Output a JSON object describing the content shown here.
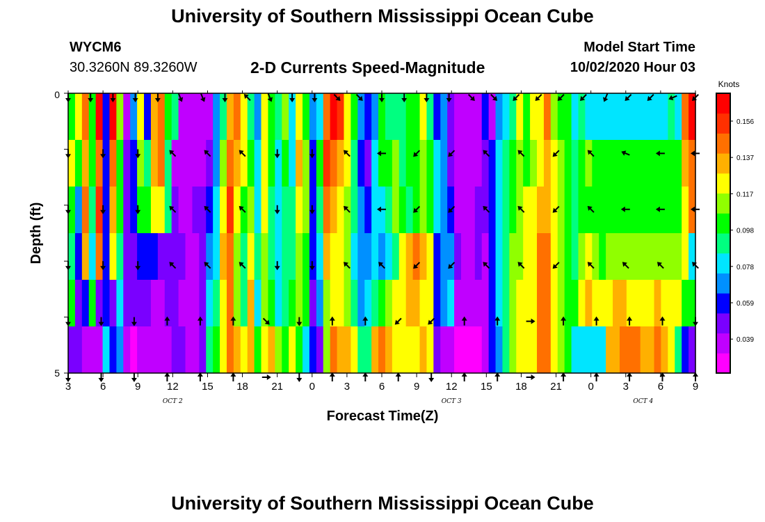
{
  "header": {
    "title": "University of Southern Mississippi Ocean Cube",
    "station_id": "WYCM6",
    "coordinates": "30.3260N 89.3260W",
    "chart_title": "2-D Currents Speed-Magnitude",
    "model_label": "Model Start Time",
    "model_time": "10/02/2020 Hour 03"
  },
  "footer": {
    "title": "University of Southern Mississippi Ocean Cube"
  },
  "chart_data": {
    "type": "heatmap",
    "xlabel": "Forecast Time(Z)",
    "ylabel": "Depth (ft)",
    "ylim": [
      0,
      5
    ],
    "y_tick_labels": [
      "0",
      "5"
    ],
    "x_tick_labels": [
      "3",
      "6",
      "9",
      "12",
      "15",
      "18",
      "21",
      "0",
      "3",
      "6",
      "9",
      "12",
      "15",
      "18",
      "21",
      "0",
      "3",
      "6",
      "9"
    ],
    "date_labels": [
      {
        "text": "OCT 2",
        "at_tick": 3
      },
      {
        "text": "OCT 3",
        "at_tick": 11
      },
      {
        "text": "OCT 4",
        "at_tick": 16.5
      }
    ],
    "colorbar": {
      "unit": "Knots",
      "tick_labels": [
        "0.156",
        "0.137",
        "0.117",
        "0.098",
        "0.078",
        "0.059",
        "0.039"
      ],
      "colors": [
        "#ff00ff",
        "#c000ff",
        "#7a00ff",
        "#0000ff",
        "#0090ff",
        "#00e5ff",
        "#00ff80",
        "#00ff00",
        "#90ff00",
        "#ffff00",
        "#ffb000",
        "#ff7000",
        "#ff3000",
        "#ff0000"
      ]
    },
    "layers": 5,
    "hours_per_column": 1,
    "speed_grid": [
      [
        0.1,
        0.12,
        0.14,
        0.1,
        0.16,
        0.06,
        0.16,
        0.11,
        0.04,
        0.07,
        0.12,
        0.06,
        0.13,
        0.14,
        0.1,
        0.09,
        0.04,
        0.04,
        0.04,
        0.04,
        0.04,
        0.07,
        0.09,
        0.13,
        0.14,
        0.12,
        0.09,
        0.07,
        0.12,
        0.1,
        0.09,
        0.11,
        0.08,
        0.12,
        0.1,
        0.07,
        0.08,
        0.14,
        0.16,
        0.15,
        0.12,
        0.1,
        0.07,
        0.06,
        0.07,
        0.1,
        0.09,
        0.09,
        0.09,
        0.1,
        0.1,
        0.12,
        0.09,
        0.06,
        0.07,
        0.05,
        0.04,
        0.04,
        0.04,
        0.04,
        0.06,
        0.04,
        0.07,
        0.08,
        0.09,
        0.12,
        0.1,
        0.12,
        0.12,
        0.14,
        0.11,
        0.1,
        0.1,
        0.08,
        0.09,
        0.08,
        0.08,
        0.08,
        0.08,
        0.08,
        0.08,
        0.08,
        0.08,
        0.08,
        0.08,
        0.08,
        0.08,
        0.09,
        0.08,
        0.14,
        0.16
      ],
      [
        0.12,
        0.1,
        0.13,
        0.1,
        0.14,
        0.06,
        0.14,
        0.1,
        0.05,
        0.06,
        0.11,
        0.09,
        0.13,
        0.14,
        0.09,
        0.04,
        0.04,
        0.04,
        0.04,
        0.04,
        0.05,
        0.07,
        0.11,
        0.14,
        0.13,
        0.12,
        0.1,
        0.08,
        0.12,
        0.1,
        0.08,
        0.1,
        0.08,
        0.13,
        0.11,
        0.06,
        0.1,
        0.15,
        0.14,
        0.13,
        0.12,
        0.09,
        0.06,
        0.05,
        0.08,
        0.1,
        0.1,
        0.11,
        0.09,
        0.1,
        0.1,
        0.11,
        0.1,
        0.08,
        0.07,
        0.05,
        0.04,
        0.04,
        0.04,
        0.04,
        0.05,
        0.06,
        0.08,
        0.09,
        0.1,
        0.11,
        0.1,
        0.11,
        0.12,
        0.13,
        0.12,
        0.11,
        0.1,
        0.09,
        0.1,
        0.11,
        0.1,
        0.1,
        0.1,
        0.1,
        0.1,
        0.1,
        0.1,
        0.1,
        0.1,
        0.1,
        0.1,
        0.1,
        0.1,
        0.13,
        0.14
      ],
      [
        0.1,
        0.07,
        0.14,
        0.09,
        0.15,
        0.06,
        0.13,
        0.1,
        0.05,
        0.06,
        0.1,
        0.1,
        0.12,
        0.12,
        0.09,
        0.05,
        0.04,
        0.04,
        0.05,
        0.05,
        0.06,
        0.08,
        0.12,
        0.15,
        0.12,
        0.1,
        0.11,
        0.08,
        0.12,
        0.09,
        0.08,
        0.09,
        0.09,
        0.12,
        0.11,
        0.06,
        0.09,
        0.14,
        0.13,
        0.12,
        0.11,
        0.09,
        0.07,
        0.06,
        0.08,
        0.08,
        0.09,
        0.11,
        0.1,
        0.09,
        0.1,
        0.11,
        0.1,
        0.08,
        0.07,
        0.06,
        0.04,
        0.04,
        0.04,
        0.05,
        0.05,
        0.06,
        0.08,
        0.09,
        0.1,
        0.11,
        0.12,
        0.12,
        0.13,
        0.13,
        0.12,
        0.11,
        0.1,
        0.09,
        0.1,
        0.1,
        0.1,
        0.1,
        0.1,
        0.1,
        0.1,
        0.1,
        0.1,
        0.1,
        0.1,
        0.1,
        0.1,
        0.1,
        0.1,
        0.12,
        0.14
      ],
      [
        0.09,
        0.06,
        0.13,
        0.08,
        0.14,
        0.06,
        0.12,
        0.09,
        0.05,
        0.05,
        0.06,
        0.06,
        0.06,
        0.05,
        0.05,
        0.05,
        0.05,
        0.04,
        0.04,
        0.05,
        0.07,
        0.08,
        0.13,
        0.14,
        0.11,
        0.09,
        0.12,
        0.09,
        0.11,
        0.09,
        0.08,
        0.09,
        0.09,
        0.11,
        0.1,
        0.06,
        0.08,
        0.13,
        0.12,
        0.12,
        0.11,
        0.08,
        0.07,
        0.07,
        0.08,
        0.07,
        0.08,
        0.09,
        0.12,
        0.13,
        0.14,
        0.13,
        0.12,
        0.06,
        0.07,
        0.07,
        0.05,
        0.04,
        0.04,
        0.05,
        0.04,
        0.06,
        0.08,
        0.09,
        0.11,
        0.11,
        0.12,
        0.12,
        0.14,
        0.14,
        0.12,
        0.11,
        0.1,
        0.09,
        0.11,
        0.12,
        0.11,
        0.1,
        0.11,
        0.11,
        0.11,
        0.11,
        0.11,
        0.11,
        0.11,
        0.11,
        0.11,
        0.11,
        0.11,
        0.12,
        0.08
      ],
      [
        0.1,
        0.05,
        0.06,
        0.1,
        0.05,
        0.06,
        0.05,
        0.08,
        0.05,
        0.05,
        0.05,
        0.05,
        0.04,
        0.04,
        0.05,
        0.05,
        0.04,
        0.04,
        0.04,
        0.05,
        0.08,
        0.09,
        0.12,
        0.14,
        0.11,
        0.09,
        0.13,
        0.08,
        0.11,
        0.1,
        0.08,
        0.09,
        0.1,
        0.11,
        0.1,
        0.05,
        0.07,
        0.11,
        0.12,
        0.12,
        0.11,
        0.09,
        0.07,
        0.08,
        0.09,
        0.1,
        0.11,
        0.12,
        0.12,
        0.13,
        0.13,
        0.12,
        0.12,
        0.06,
        0.07,
        0.08,
        0.04,
        0.04,
        0.04,
        0.04,
        0.04,
        0.06,
        0.08,
        0.09,
        0.11,
        0.12,
        0.12,
        0.12,
        0.14,
        0.14,
        0.12,
        0.11,
        0.1,
        0.1,
        0.12,
        0.13,
        0.12,
        0.12,
        0.12,
        0.13,
        0.13,
        0.12,
        0.12,
        0.12,
        0.12,
        0.13,
        0.12,
        0.12,
        0.12,
        0.1,
        0.1
      ],
      [
        0.05,
        0.05,
        0.04,
        0.04,
        0.04,
        0.08,
        0.06,
        0.07,
        0.04,
        0.03,
        0.04,
        0.04,
        0.04,
        0.04,
        0.04,
        0.05,
        0.05,
        0.04,
        0.04,
        0.05,
        0.09,
        0.1,
        0.12,
        0.14,
        0.13,
        0.12,
        0.13,
        0.1,
        0.12,
        0.13,
        0.11,
        0.1,
        0.12,
        0.1,
        0.08,
        0.06,
        0.05,
        0.11,
        0.14,
        0.13,
        0.13,
        0.12,
        0.09,
        0.09,
        0.13,
        0.14,
        0.13,
        0.12,
        0.12,
        0.12,
        0.12,
        0.13,
        0.12,
        0.05,
        0.04,
        0.04,
        0.03,
        0.03,
        0.03,
        0.03,
        0.04,
        0.06,
        0.07,
        0.09,
        0.11,
        0.12,
        0.12,
        0.12,
        0.14,
        0.14,
        0.12,
        0.11,
        0.1,
        0.08,
        0.08,
        0.08,
        0.08,
        0.08,
        0.13,
        0.13,
        0.14,
        0.14,
        0.14,
        0.13,
        0.13,
        0.14,
        0.13,
        0.12,
        0.09,
        0.06,
        0.05
      ]
    ],
    "arrow_rows": [
      [
        "S",
        "S",
        "S",
        "S",
        "S",
        "SSE",
        "SSE",
        "S",
        "NW",
        "SSE",
        "S",
        "S",
        "SE",
        "SE",
        "S",
        "S",
        "S",
        "S",
        "SE",
        "SE",
        "SW",
        "SW",
        "SW",
        "SW",
        "SSW",
        "SW",
        "SW",
        "WSW",
        "SW"
      ],
      [
        "S",
        "S",
        "S",
        "NW",
        "NW",
        "NW",
        "S",
        "S",
        "NW",
        "W",
        "SW",
        "SW",
        "NW",
        "NW",
        "SW",
        "NW",
        "WNW",
        "W",
        "W"
      ],
      [
        "S",
        "S",
        "S",
        "NW",
        "NW",
        "NW",
        "S",
        "S",
        "NW",
        "W",
        "SW",
        "SW",
        "NW",
        "NW",
        "SW",
        "NW",
        "W",
        "W",
        "W"
      ],
      [
        "S",
        "S",
        "S",
        "NW",
        "NW",
        "NW",
        "S",
        "S",
        "NW",
        "NW",
        "SW",
        "SW",
        "NW",
        "NW",
        "SW",
        "NW",
        "NW",
        "NW",
        "NW"
      ],
      [
        "S",
        "S",
        "S",
        "N",
        "N",
        "N",
        "SE",
        "S",
        "N",
        "N",
        "SW",
        "SW",
        "N",
        "N",
        "E",
        "N",
        "N",
        "N",
        "N",
        "S"
      ],
      [
        "S",
        "S",
        "S",
        "N",
        "N",
        "N",
        "E",
        "S",
        "N",
        "N",
        "N",
        "S",
        "N",
        "N",
        "E",
        "N",
        "N",
        "N",
        "N",
        "N"
      ]
    ]
  }
}
